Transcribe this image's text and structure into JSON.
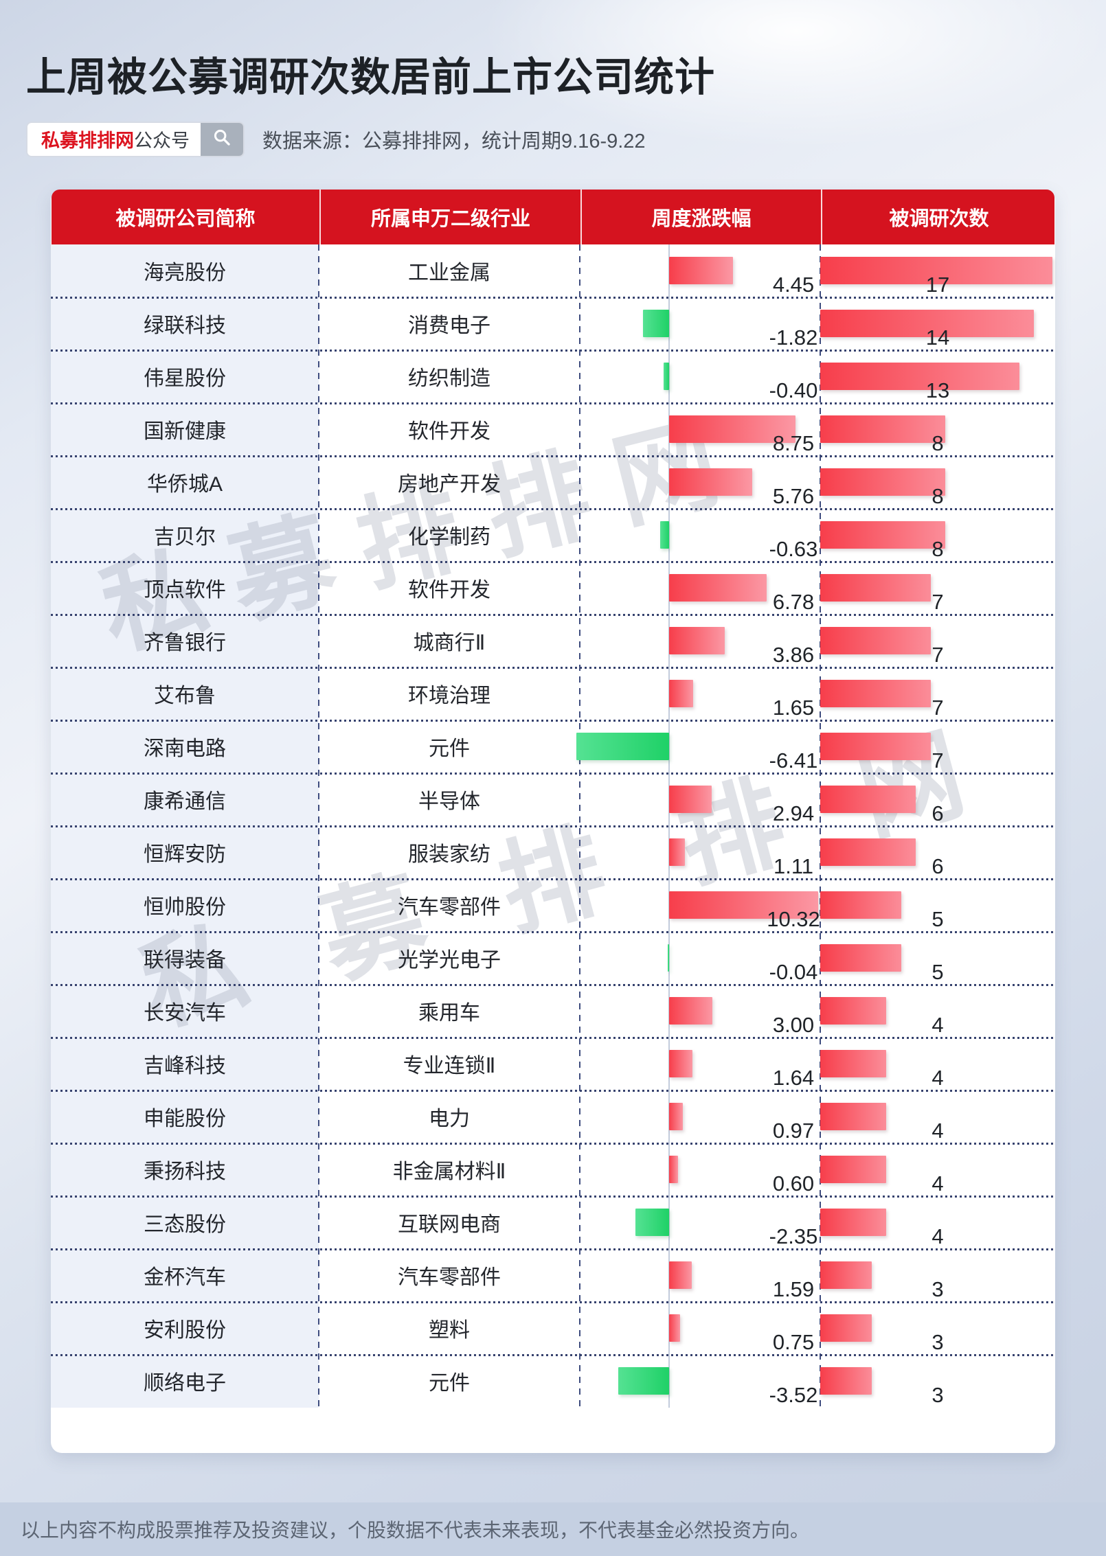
{
  "title": "上周被公募调研次数居前上市公司统计",
  "badge": {
    "brand": "私募排排网",
    "suffix": "公众号",
    "search_icon": "magnifier-icon"
  },
  "source_line": "数据来源：公募排排网，统计周期9.16-9.22",
  "watermark_text": "私募排排网",
  "footer_text": "以上内容不构成股票推荐及投资建议，个股数据不代表未来表现，不代表基金必然投资方向。",
  "colors": {
    "header_red": "#d5131f",
    "brand_red": "#dc1420",
    "positive_bar_start": "#f73e4b",
    "positive_bar_end": "#fb98a4",
    "negative_bar_start": "#55e293",
    "negative_bar_end": "#1fd167",
    "company_cell_bg": "#edf1f9",
    "separator_navy": "#36426e",
    "footer_bg": "#c5d0e2"
  },
  "chart_data": {
    "type": "table",
    "columns": [
      "被调研公司简称",
      "所属申万二级行业",
      "周度涨跌幅",
      "被调研次数"
    ],
    "legend": "周度涨跌幅 shown as diverging bar (red = positive, green = negative); 被调研次数 shown as red bar from column left",
    "rows": [
      {
        "company": "海亮股份",
        "industry": "工业金属",
        "weekly_change": 4.45,
        "survey_count": 17
      },
      {
        "company": "绿联科技",
        "industry": "消费电子",
        "weekly_change": -1.82,
        "survey_count": 14
      },
      {
        "company": "伟星股份",
        "industry": "纺织制造",
        "weekly_change": -0.4,
        "survey_count": 13
      },
      {
        "company": "国新健康",
        "industry": "软件开发",
        "weekly_change": 8.75,
        "survey_count": 8
      },
      {
        "company": "华侨城A",
        "industry": "房地产开发",
        "weekly_change": 5.76,
        "survey_count": 8
      },
      {
        "company": "吉贝尔",
        "industry": "化学制药",
        "weekly_change": -0.63,
        "survey_count": 8
      },
      {
        "company": "顶点软件",
        "industry": "软件开发",
        "weekly_change": 6.78,
        "survey_count": 7
      },
      {
        "company": "齐鲁银行",
        "industry": "城商行Ⅱ",
        "weekly_change": 3.86,
        "survey_count": 7
      },
      {
        "company": "艾布鲁",
        "industry": "环境治理",
        "weekly_change": 1.65,
        "survey_count": 7
      },
      {
        "company": "深南电路",
        "industry": "元件",
        "weekly_change": -6.41,
        "survey_count": 7
      },
      {
        "company": "康希通信",
        "industry": "半导体",
        "weekly_change": 2.94,
        "survey_count": 6
      },
      {
        "company": "恒辉安防",
        "industry": "服装家纺",
        "weekly_change": 1.11,
        "survey_count": 6
      },
      {
        "company": "恒帅股份",
        "industry": "汽车零部件",
        "weekly_change": 10.32,
        "survey_count": 5
      },
      {
        "company": "联得装备",
        "industry": "光学光电子",
        "weekly_change": -0.04,
        "survey_count": 5
      },
      {
        "company": "长安汽车",
        "industry": "乘用车",
        "weekly_change": 3.0,
        "survey_count": 4
      },
      {
        "company": "吉峰科技",
        "industry": "专业连锁Ⅱ",
        "weekly_change": 1.64,
        "survey_count": 4
      },
      {
        "company": "申能股份",
        "industry": "电力",
        "weekly_change": 0.97,
        "survey_count": 4
      },
      {
        "company": "秉扬科技",
        "industry": "非金属材料Ⅱ",
        "weekly_change": 0.6,
        "survey_count": 4
      },
      {
        "company": "三态股份",
        "industry": "互联网电商",
        "weekly_change": -2.35,
        "survey_count": 4
      },
      {
        "company": "金杯汽车",
        "industry": "汽车零部件",
        "weekly_change": 1.59,
        "survey_count": 3
      },
      {
        "company": "安利股份",
        "industry": "塑料",
        "weekly_change": 0.75,
        "survey_count": 3
      },
      {
        "company": "顺络电子",
        "industry": "元件",
        "weekly_change": -3.52,
        "survey_count": 3
      }
    ]
  }
}
